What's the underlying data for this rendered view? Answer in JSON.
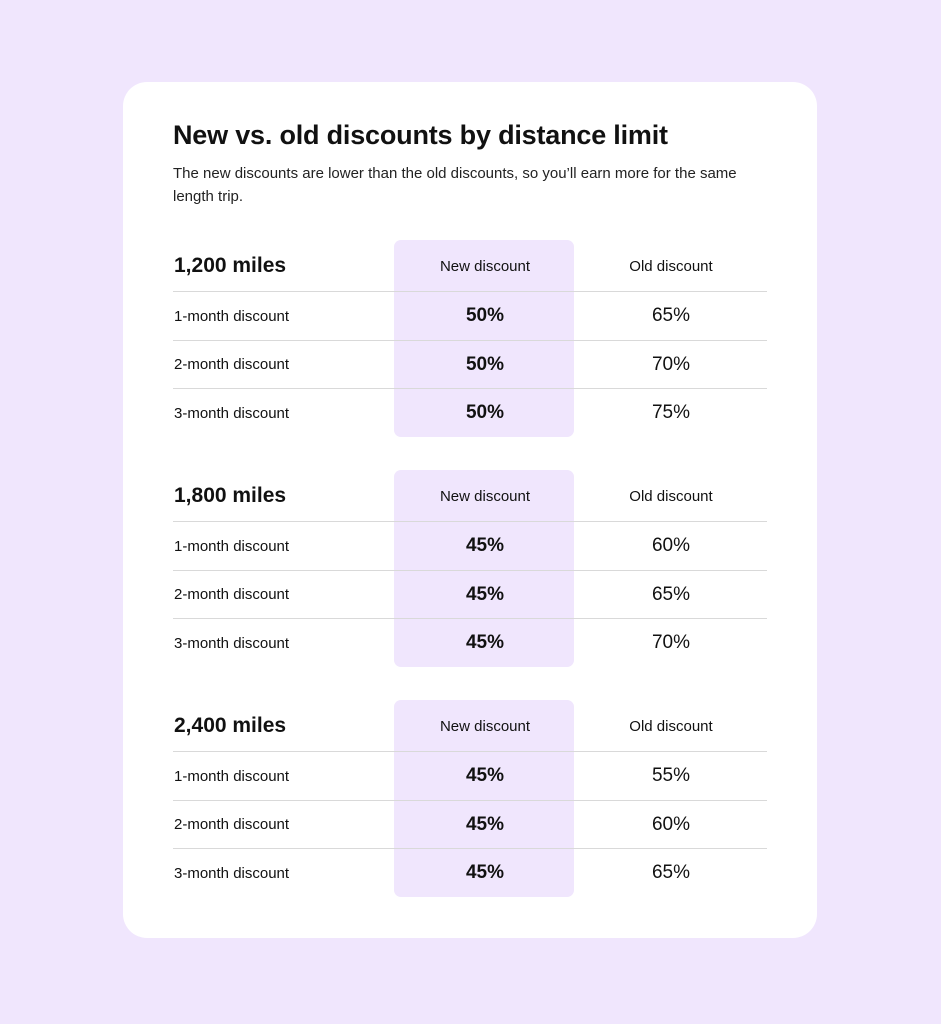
{
  "title": "New vs. old discounts by distance limit",
  "subtitle": "The new discounts are lower than the old discounts, so you’ll earn more for the same length trip.",
  "colors": {
    "background": "#f0e6fd",
    "card": "#ffffff",
    "highlight": "#f0e6fd"
  },
  "tables": [
    {
      "distance": "1,200 miles",
      "new_header": "New discount",
      "old_header": "Old discount",
      "rows": [
        {
          "label": "1-month discount",
          "new": "50%",
          "old": "65%"
        },
        {
          "label": "2-month discount",
          "new": "50%",
          "old": "70%"
        },
        {
          "label": "3-month discount",
          "new": "50%",
          "old": "75%"
        }
      ]
    },
    {
      "distance": "1,800 miles",
      "new_header": "New discount",
      "old_header": "Old discount",
      "rows": [
        {
          "label": "1-month discount",
          "new": "45%",
          "old": "60%"
        },
        {
          "label": "2-month discount",
          "new": "45%",
          "old": "65%"
        },
        {
          "label": "3-month discount",
          "new": "45%",
          "old": "70%"
        }
      ]
    },
    {
      "distance": "2,400 miles",
      "new_header": "New discount",
      "old_header": "Old discount",
      "rows": [
        {
          "label": "1-month discount",
          "new": "45%",
          "old": "55%"
        },
        {
          "label": "2-month discount",
          "new": "45%",
          "old": "60%"
        },
        {
          "label": "3-month discount",
          "new": "45%",
          "old": "65%"
        }
      ]
    }
  ]
}
